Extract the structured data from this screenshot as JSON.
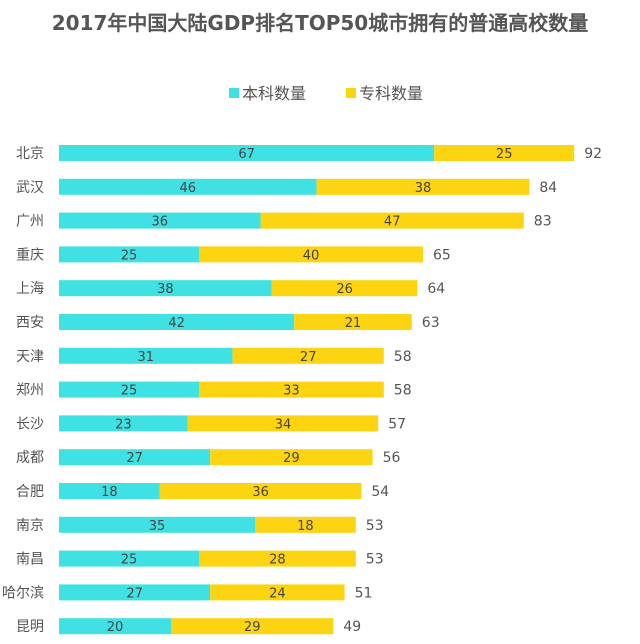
{
  "chart_data": {
    "type": "bar",
    "orientation": "horizontal",
    "stacked": true,
    "title": "2017年中国大陆GDP排名TOP50城市拥有的普通高校数量",
    "legend_placement": "top-center",
    "grid": false,
    "categories": [
      "北京",
      "武汉",
      "广州",
      "重庆",
      "上海",
      "西安",
      "天津",
      "郑州",
      "长沙",
      "成都",
      "合肥",
      "南京",
      "南昌",
      "哈尔滨",
      "昆明"
    ],
    "series": [
      {
        "name": "本科数量",
        "color": "#3fe1e3",
        "values": [
          67,
          46,
          36,
          25,
          38,
          42,
          31,
          25,
          23,
          27,
          18,
          35,
          25,
          27,
          20
        ]
      },
      {
        "name": "专科数量",
        "color": "#fdd412",
        "values": [
          25,
          38,
          47,
          40,
          26,
          21,
          27,
          33,
          34,
          29,
          36,
          18,
          28,
          24,
          29
        ]
      }
    ],
    "totals": [
      92,
      84,
      83,
      65,
      64,
      63,
      58,
      58,
      57,
      56,
      54,
      53,
      53,
      51,
      49
    ]
  }
}
